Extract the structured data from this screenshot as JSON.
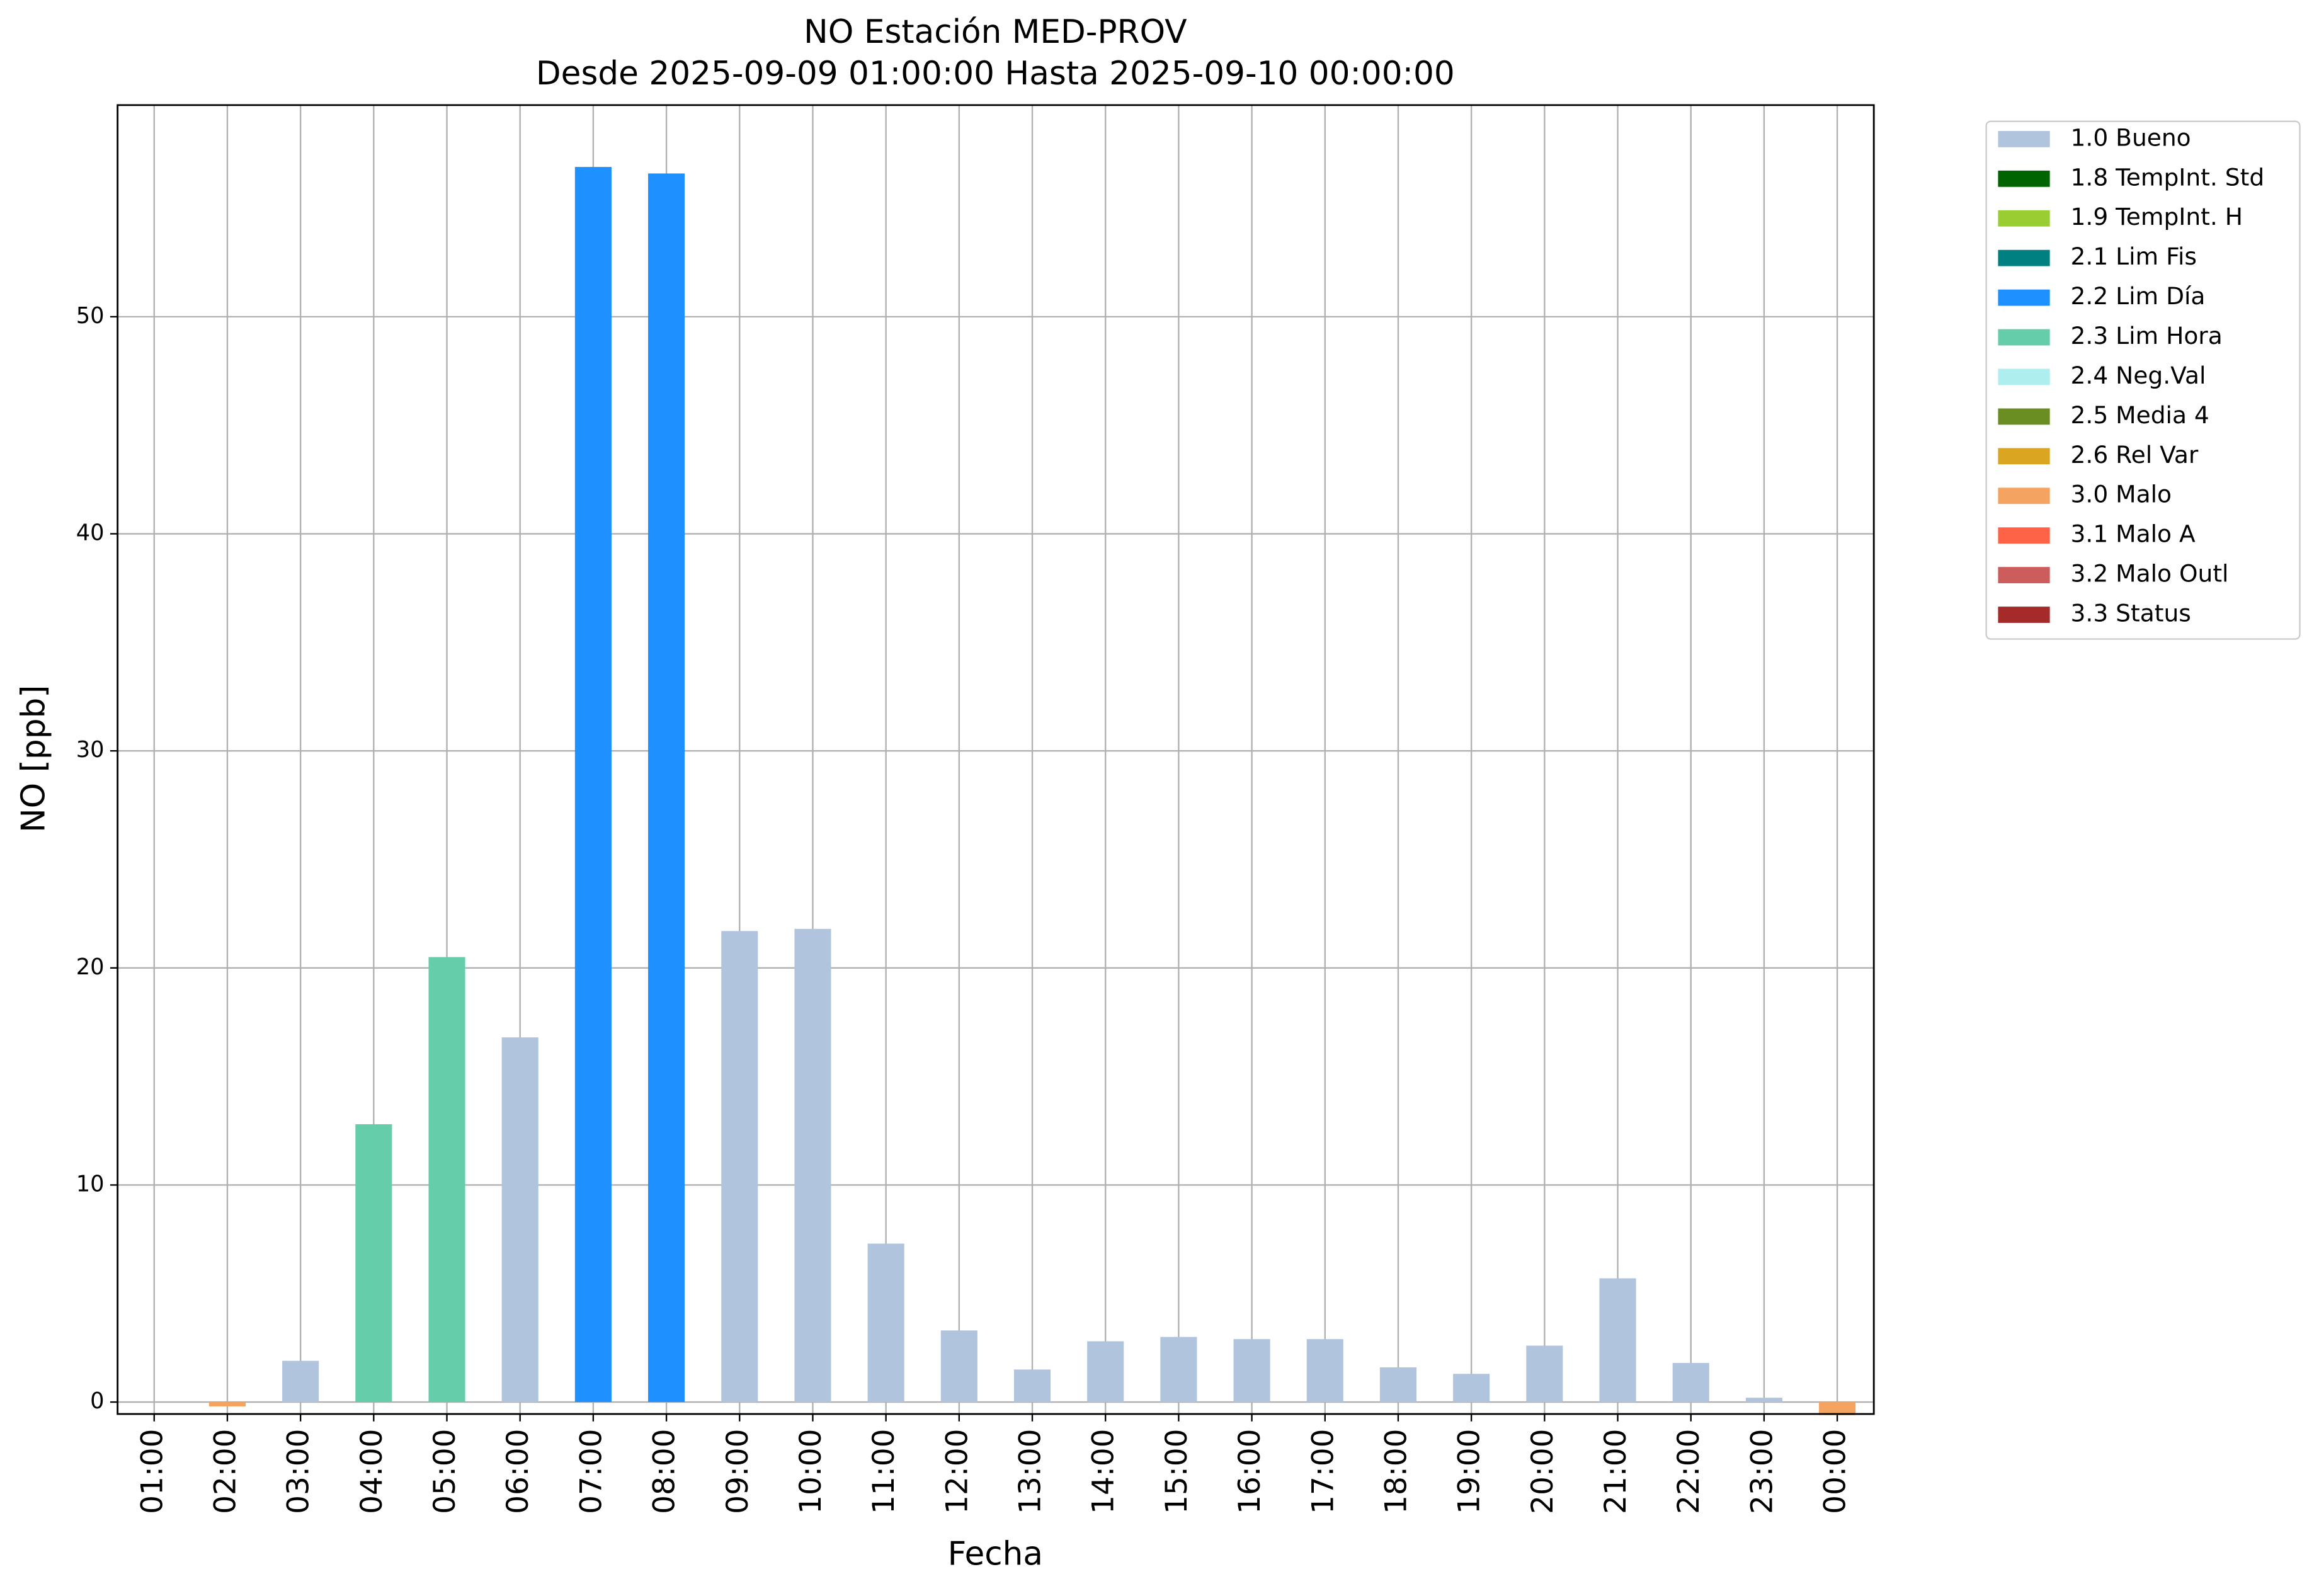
{
  "chart_data": {
    "type": "bar",
    "title": "NO Estación MED-PROV",
    "subtitle": "Desde 2025-09-09 01:00:00 Hasta 2025-09-10 00:00:00",
    "x_label": "Fecha",
    "y_label": "NO [ppb]",
    "categories": [
      "01:00",
      "02:00",
      "03:00",
      "04:00",
      "05:00",
      "06:00",
      "07:00",
      "08:00",
      "09:00",
      "10:00",
      "11:00",
      "12:00",
      "13:00",
      "14:00",
      "15:00",
      "16:00",
      "17:00",
      "18:00",
      "19:00",
      "20:00",
      "21:00",
      "22:00",
      "23:00",
      "00:00"
    ],
    "series": [
      {
        "name": "1.0 Bueno",
        "color": "#b0c4de",
        "values": [
          null,
          null,
          1.9,
          null,
          null,
          16.8,
          null,
          null,
          21.7,
          21.8,
          7.3,
          3.3,
          1.5,
          2.8,
          3.0,
          2.9,
          2.9,
          1.6,
          1.3,
          2.6,
          5.7,
          1.8,
          0.2,
          null
        ]
      },
      {
        "name": "1.8 TempInt. Std",
        "color": "#006400",
        "values": [
          null,
          null,
          null,
          null,
          null,
          null,
          null,
          null,
          null,
          null,
          null,
          null,
          null,
          null,
          null,
          null,
          null,
          null,
          null,
          null,
          null,
          null,
          null,
          null
        ]
      },
      {
        "name": "1.9 TempInt. H",
        "color": "#9acd32",
        "values": [
          null,
          null,
          null,
          null,
          null,
          null,
          null,
          null,
          null,
          null,
          null,
          null,
          null,
          null,
          null,
          null,
          null,
          null,
          null,
          null,
          null,
          null,
          null,
          null
        ]
      },
      {
        "name": "2.1 Lim Fis",
        "color": "#008080",
        "values": [
          null,
          null,
          null,
          null,
          null,
          null,
          null,
          null,
          null,
          null,
          null,
          null,
          null,
          null,
          null,
          null,
          null,
          null,
          null,
          null,
          null,
          null,
          null,
          null
        ]
      },
      {
        "name": "2.2 Lim Día",
        "color": "#1e90ff",
        "values": [
          null,
          null,
          null,
          null,
          null,
          null,
          56.9,
          56.6,
          null,
          null,
          null,
          null,
          null,
          null,
          null,
          null,
          null,
          null,
          null,
          null,
          null,
          null,
          null,
          null
        ]
      },
      {
        "name": "2.3 Lim Hora",
        "color": "#66cdaa",
        "values": [
          null,
          null,
          null,
          12.8,
          20.5,
          null,
          null,
          null,
          null,
          null,
          null,
          null,
          null,
          null,
          null,
          null,
          null,
          null,
          null,
          null,
          null,
          null,
          null,
          null
        ]
      },
      {
        "name": "2.4 Neg.Val",
        "color": "#afeeee",
        "values": [
          null,
          null,
          null,
          null,
          null,
          null,
          null,
          null,
          null,
          null,
          null,
          null,
          null,
          null,
          null,
          null,
          null,
          null,
          null,
          null,
          null,
          null,
          null,
          null
        ]
      },
      {
        "name": "2.5 Media 4",
        "color": "#6b8e23",
        "values": [
          null,
          null,
          null,
          null,
          null,
          null,
          null,
          null,
          null,
          null,
          null,
          null,
          null,
          null,
          null,
          null,
          null,
          null,
          null,
          null,
          null,
          null,
          null,
          null
        ]
      },
      {
        "name": "2.6 Rel Var",
        "color": "#daa520",
        "values": [
          null,
          null,
          null,
          null,
          null,
          null,
          null,
          null,
          null,
          null,
          null,
          null,
          null,
          null,
          null,
          null,
          null,
          null,
          null,
          null,
          null,
          null,
          null,
          null
        ]
      },
      {
        "name": "3.0 Malo",
        "color": "#f4a460",
        "values": [
          null,
          -0.2,
          null,
          null,
          null,
          null,
          null,
          null,
          null,
          null,
          null,
          null,
          null,
          null,
          null,
          null,
          null,
          null,
          null,
          null,
          null,
          null,
          null,
          -0.6
        ]
      },
      {
        "name": "3.1 Malo A",
        "color": "#ff6347",
        "values": [
          null,
          null,
          null,
          null,
          null,
          null,
          null,
          null,
          null,
          null,
          null,
          null,
          null,
          null,
          null,
          null,
          null,
          null,
          null,
          null,
          null,
          null,
          null,
          null
        ]
      },
      {
        "name": "3.2 Malo Outl",
        "color": "#cd5c5c",
        "values": [
          null,
          null,
          null,
          null,
          null,
          null,
          null,
          null,
          null,
          null,
          null,
          null,
          null,
          null,
          null,
          null,
          null,
          null,
          null,
          null,
          null,
          null,
          null,
          null
        ]
      },
      {
        "name": "3.3 Status",
        "color": "#a52a2a",
        "values": [
          null,
          null,
          null,
          null,
          null,
          null,
          null,
          null,
          null,
          null,
          null,
          null,
          null,
          null,
          null,
          null,
          null,
          null,
          null,
          null,
          null,
          null,
          null,
          null
        ]
      }
    ],
    "ylim": [
      -0.55,
      59.75
    ],
    "yticks": [
      0,
      10,
      20,
      30,
      40,
      50
    ],
    "grid": true,
    "legend": "outside-right"
  }
}
